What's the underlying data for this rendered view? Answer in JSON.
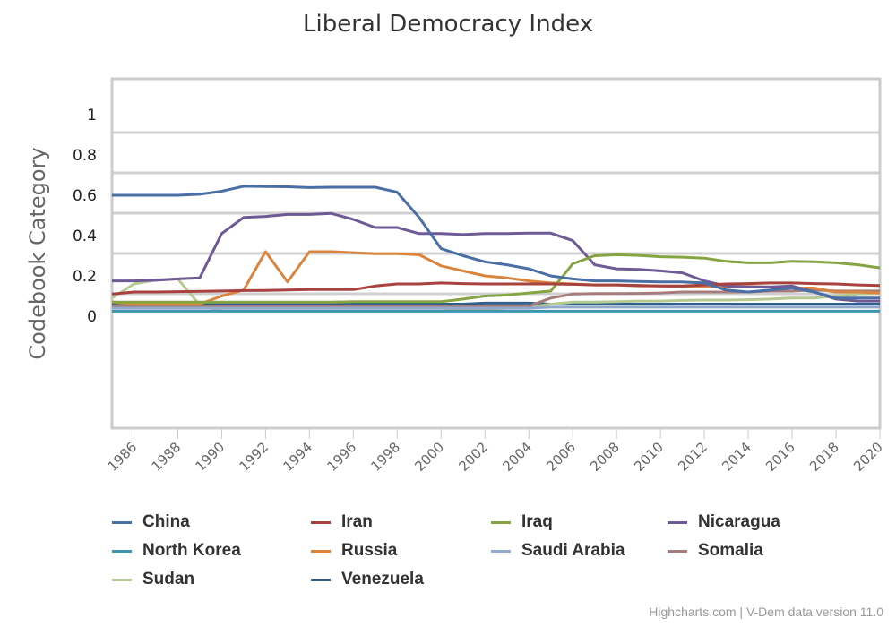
{
  "chart_data": {
    "type": "line",
    "title": "Liberal Democracy Index",
    "xlabel": "",
    "ylabel": "Codebook Category",
    "xlim": [
      1985,
      2020
    ],
    "ylim": [
      -0.55,
      1.15
    ],
    "y_ticks": [
      "0",
      "0.2",
      "0.4",
      "0.6",
      "0.8",
      "1"
    ],
    "x_ticks": [
      "1986",
      "1988",
      "1990",
      "1992",
      "1994",
      "1996",
      "1998",
      "2000",
      "2002",
      "2004",
      "2006",
      "2008",
      "2010",
      "2012",
      "2014",
      "2016",
      "2018",
      "2020"
    ],
    "grid": true,
    "legend_position": "bottom",
    "x": [
      1985,
      1986,
      1987,
      1988,
      1989,
      1990,
      1991,
      1992,
      1993,
      1994,
      1995,
      1996,
      1997,
      1998,
      1999,
      2000,
      2001,
      2002,
      2003,
      2004,
      2005,
      2006,
      2007,
      2008,
      2009,
      2010,
      2011,
      2012,
      2013,
      2014,
      2015,
      2016,
      2017,
      2018,
      2019,
      2020
    ],
    "series": [
      {
        "name": "China",
        "color": "#4a6fa5",
        "values": [
          0.6,
          0.6,
          0.6,
          0.6,
          0.605,
          0.62,
          0.645,
          0.643,
          0.642,
          0.638,
          0.64,
          0.64,
          0.64,
          0.615,
          0.49,
          0.335,
          0.3,
          0.27,
          0.255,
          0.235,
          0.2,
          0.185,
          0.175,
          0.175,
          0.172,
          0.17,
          0.17,
          0.165,
          0.13,
          0.12,
          0.13,
          0.14,
          0.12,
          0.09,
          0.09,
          0.09
        ]
      },
      {
        "name": "Iran",
        "color": "#a8423f",
        "values": [
          0.11,
          0.12,
          0.12,
          0.122,
          0.123,
          0.125,
          0.127,
          0.128,
          0.13,
          0.132,
          0.132,
          0.132,
          0.15,
          0.16,
          0.16,
          0.165,
          0.162,
          0.16,
          0.16,
          0.16,
          0.16,
          0.158,
          0.155,
          0.155,
          0.153,
          0.15,
          0.15,
          0.155,
          0.16,
          0.162,
          0.165,
          0.165,
          0.162,
          0.16,
          0.155,
          0.152
        ]
      },
      {
        "name": "Iraq",
        "color": "#86a542",
        "values": [
          0.07,
          0.07,
          0.07,
          0.07,
          0.07,
          0.07,
          0.07,
          0.07,
          0.07,
          0.07,
          0.07,
          0.072,
          0.072,
          0.072,
          0.072,
          0.072,
          0.085,
          0.1,
          0.105,
          0.115,
          0.125,
          0.26,
          0.3,
          0.305,
          0.302,
          0.295,
          0.293,
          0.288,
          0.272,
          0.265,
          0.265,
          0.272,
          0.27,
          0.265,
          0.255,
          0.24
        ]
      },
      {
        "name": "Nicaragua",
        "color": "#6e5a95",
        "values": [
          0.175,
          0.175,
          0.178,
          0.185,
          0.19,
          0.41,
          0.49,
          0.495,
          0.505,
          0.505,
          0.51,
          0.48,
          0.44,
          0.44,
          0.41,
          0.41,
          0.405,
          0.41,
          0.41,
          0.412,
          0.412,
          0.375,
          0.255,
          0.235,
          0.232,
          0.225,
          0.215,
          0.175,
          0.15,
          0.145,
          0.145,
          0.15,
          0.12,
          0.085,
          0.075,
          0.075
        ]
      },
      {
        "name": "North Korea",
        "color": "#3d96ae",
        "values": [
          0.025,
          0.025,
          0.025,
          0.025,
          0.025,
          0.025,
          0.025,
          0.025,
          0.025,
          0.025,
          0.025,
          0.025,
          0.025,
          0.025,
          0.025,
          0.025,
          0.025,
          0.025,
          0.025,
          0.025,
          0.025,
          0.025,
          0.025,
          0.025,
          0.025,
          0.025,
          0.025,
          0.025,
          0.025,
          0.025,
          0.025,
          0.025,
          0.025,
          0.025,
          0.025,
          0.025
        ]
      },
      {
        "name": "Russia",
        "color": "#db843d",
        "values": [
          0.07,
          0.06,
          0.06,
          0.06,
          0.06,
          0.1,
          0.13,
          0.32,
          0.17,
          0.32,
          0.32,
          0.315,
          0.31,
          0.31,
          0.305,
          0.25,
          0.225,
          0.2,
          0.19,
          0.175,
          0.165,
          0.16,
          0.155,
          0.155,
          0.15,
          0.15,
          0.148,
          0.148,
          0.148,
          0.148,
          0.145,
          0.14,
          0.14,
          0.12,
          0.12,
          0.115
        ]
      },
      {
        "name": "Saudi Arabia",
        "color": "#92a8cd",
        "values": [
          0.04,
          0.04,
          0.04,
          0.04,
          0.04,
          0.04,
          0.04,
          0.04,
          0.04,
          0.04,
          0.04,
          0.04,
          0.04,
          0.04,
          0.04,
          0.04,
          0.04,
          0.04,
          0.04,
          0.04,
          0.045,
          0.045,
          0.045,
          0.045,
          0.045,
          0.045,
          0.045,
          0.045,
          0.045,
          0.045,
          0.045,
          0.045,
          0.045,
          0.045,
          0.045,
          0.045
        ]
      },
      {
        "name": "Somalia",
        "color": "#a47d7c",
        "values": [
          0.05,
          0.05,
          0.05,
          0.05,
          0.05,
          0.05,
          0.05,
          0.05,
          0.05,
          0.05,
          0.05,
          0.05,
          0.05,
          0.05,
          0.05,
          0.05,
          0.05,
          0.05,
          0.05,
          0.05,
          0.09,
          0.11,
          0.112,
          0.112,
          0.113,
          0.115,
          0.12,
          0.12,
          0.12,
          0.12,
          0.125,
          0.125,
          0.13,
          0.125,
          0.125,
          0.125
        ]
      },
      {
        "name": "Sudan",
        "color": "#b5ca92",
        "values": [
          0.09,
          0.16,
          0.18,
          0.185,
          0.055,
          0.025,
          0.025,
          0.025,
          0.025,
          0.025,
          0.025,
          0.025,
          0.025,
          0.025,
          0.025,
          0.025,
          0.03,
          0.035,
          0.04,
          0.045,
          0.06,
          0.07,
          0.07,
          0.072,
          0.075,
          0.075,
          0.078,
          0.08,
          0.08,
          0.082,
          0.085,
          0.09,
          0.09,
          0.1,
          0.11,
          0.115
        ]
      },
      {
        "name": "Venezuela",
        "color": "#2f5f8a",
        "values": [
          0.06,
          0.06,
          0.06,
          0.06,
          0.06,
          0.06,
          0.06,
          0.06,
          0.06,
          0.06,
          0.06,
          0.06,
          0.06,
          0.06,
          0.06,
          0.06,
          0.06,
          0.065,
          0.065,
          0.065,
          0.06,
          0.06,
          0.06,
          0.06,
          0.06,
          0.06,
          0.06,
          0.06,
          0.06,
          0.06,
          0.06,
          0.06,
          0.06,
          0.06,
          0.06,
          0.06
        ]
      }
    ]
  },
  "credits": "Highcharts.com | V-Dem data version 11.0"
}
